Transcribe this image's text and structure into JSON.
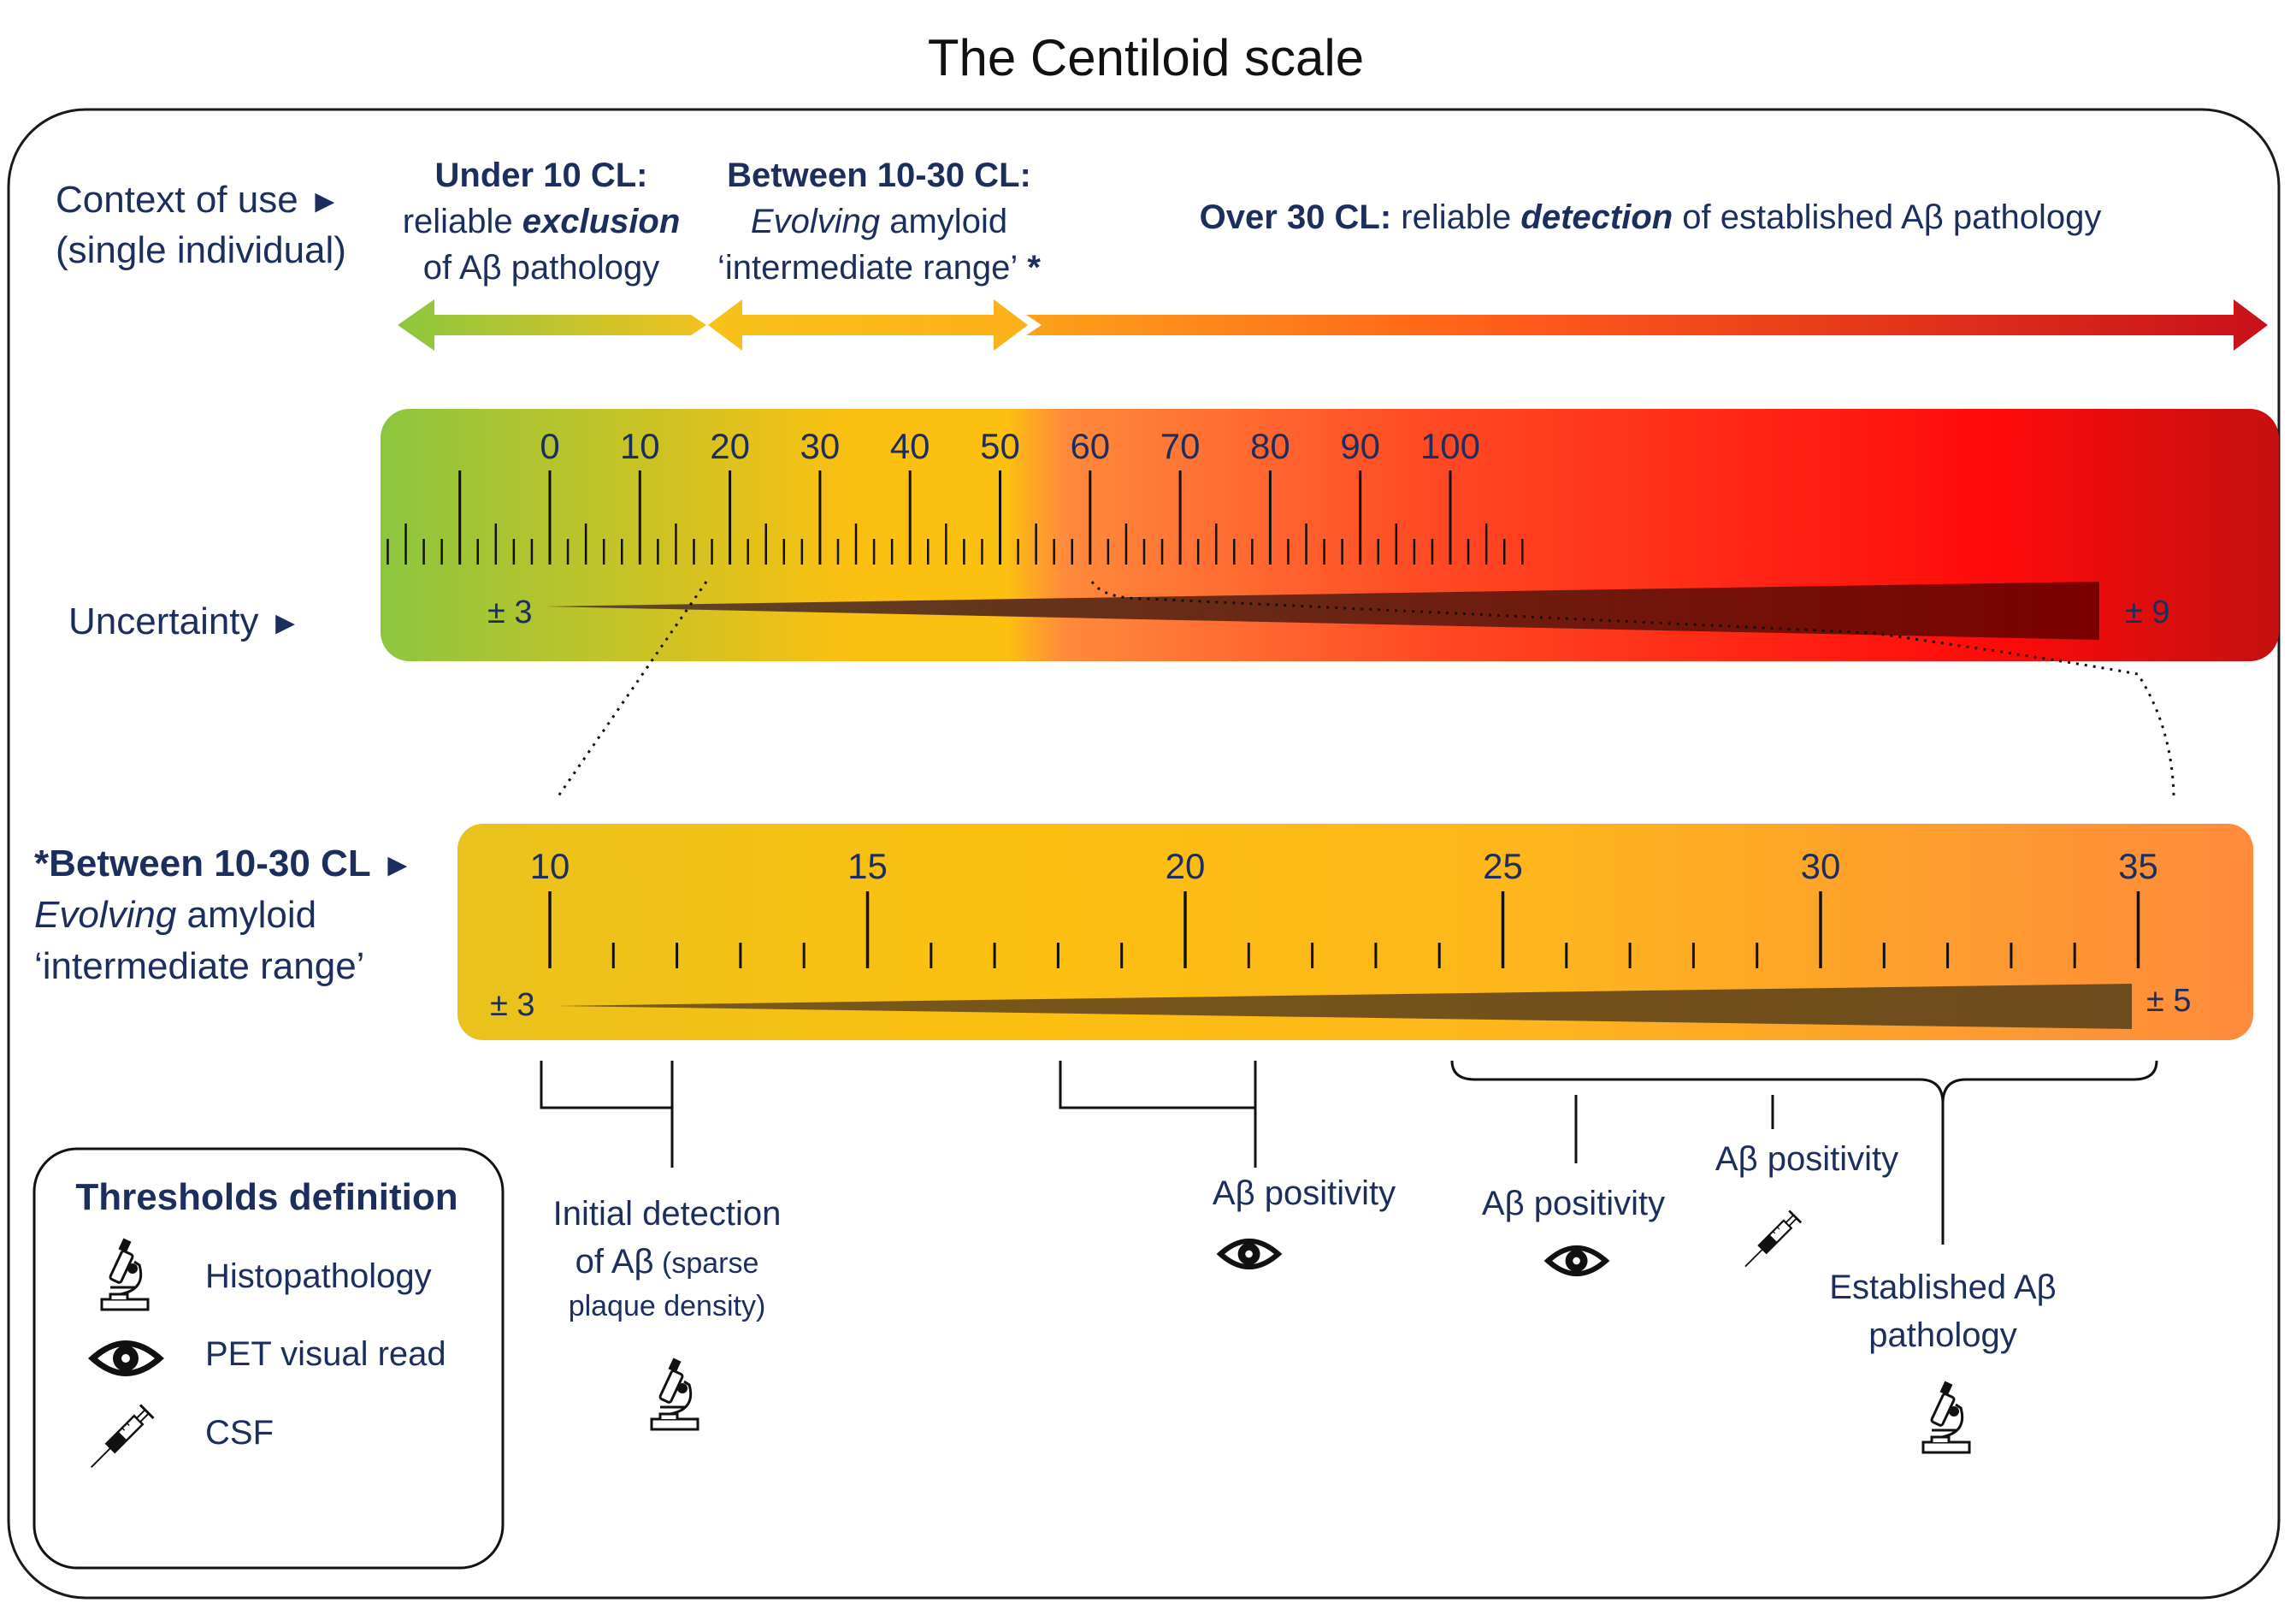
{
  "title": "The Centiloid scale",
  "context": {
    "label_line1": "Context of use",
    "label_line2": "(single individual)",
    "arrow_glyph": "►",
    "under10": {
      "bold": "Under 10 CL:",
      "pre": "reliable ",
      "emph": "exclusion",
      "line3": "of Aβ pathology"
    },
    "between": {
      "bold": "Between 10-30 CL:",
      "emph": "Evolving",
      "post": " amyloid",
      "line3": "‘intermediate range’",
      "star": " *"
    },
    "over30": {
      "bold": "Over 30 CL:",
      "pre": " reliable ",
      "emph": "detection",
      "post": " of established Aβ pathology"
    }
  },
  "scale_top": {
    "labels": [
      "0",
      "10",
      "20",
      "30",
      "40",
      "50",
      "60",
      "70",
      "80",
      "90",
      "100"
    ],
    "uncertainty_label": "Uncertainty",
    "unc_left": "± 3",
    "unc_right": "± 9",
    "colors": {
      "green": "#8cc63f",
      "yellow": "#fcc010",
      "orange": "#ff8a3c",
      "red": "#ff0a0a",
      "darkred": "#c41010"
    }
  },
  "scale_zoom": {
    "label_line1": "*Between 10-30 CL",
    "label_emph": "Evolving",
    "label_line2_post": " amyloid",
    "label_line3": "‘intermediate range’",
    "labels": [
      "10",
      "15",
      "20",
      "25",
      "30",
      "35"
    ],
    "unc_left": "± 3",
    "unc_right": "± 5"
  },
  "thresholds": {
    "initial": {
      "line1": "Initial detection",
      "line2": "of Aβ",
      "line2_small": " (sparse",
      "line3": "plaque density)",
      "icon": "microscope-icon"
    },
    "pet20": {
      "label": "Aβ positivity",
      "icon": "eye-icon"
    },
    "pet26": {
      "label": "Aβ positivity",
      "icon": "eye-icon"
    },
    "csf": {
      "label": "Aβ positivity",
      "icon": "syringe-icon"
    },
    "established": {
      "line1": "Established Aβ",
      "line2": "pathology",
      "icon": "microscope-icon"
    }
  },
  "legend": {
    "title": "Thresholds definition",
    "items": [
      {
        "icon": "microscope-icon",
        "label": "Histopathology"
      },
      {
        "icon": "eye-icon",
        "label": "PET visual read"
      },
      {
        "icon": "syringe-icon",
        "label": "CSF"
      }
    ]
  }
}
